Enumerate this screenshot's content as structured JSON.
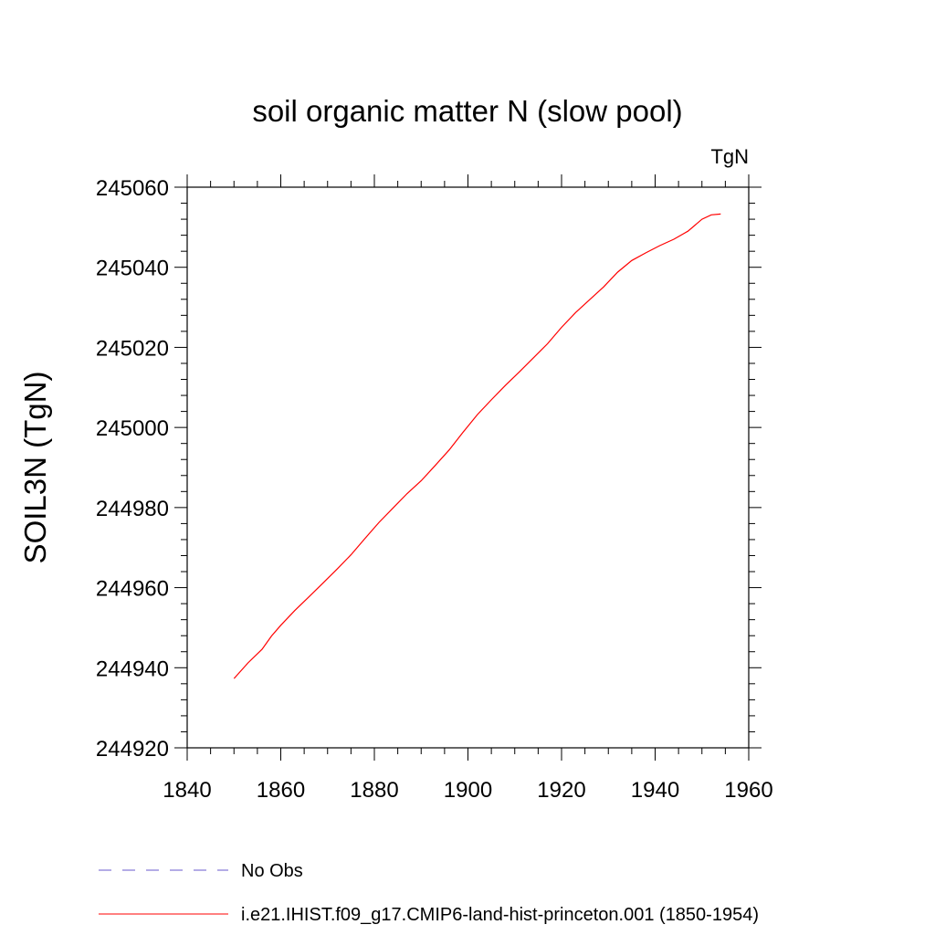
{
  "chart_data": {
    "type": "line",
    "title": "soil organic matter N (slow pool)",
    "units_label": "TgN",
    "xlabel": "",
    "ylabel": "SOIL3N  (TgN)",
    "xlim": [
      1840,
      1960
    ],
    "ylim": [
      244920,
      245060
    ],
    "x_ticks": [
      1840,
      1860,
      1880,
      1900,
      1920,
      1940,
      1960
    ],
    "y_ticks": [
      244920,
      244940,
      244960,
      244980,
      245000,
      245020,
      245040,
      245060
    ],
    "grid": false,
    "legend_position": "bottom",
    "series": [
      {
        "name": "No Obs",
        "color": "#6a5acd",
        "style": "dashed",
        "x": [],
        "y": []
      },
      {
        "name": "i.e21.IHIST.f09_g17.CMIP6-land-hist-princeton.001 (1850-1954)",
        "color": "#ff0000",
        "style": "solid",
        "x": [
          1850,
          1853,
          1856,
          1858,
          1860,
          1863,
          1866,
          1869,
          1872,
          1875,
          1878,
          1881,
          1884,
          1887,
          1890,
          1893,
          1896,
          1899,
          1902,
          1905,
          1908,
          1911,
          1914,
          1917,
          1920,
          1923,
          1926,
          1929,
          1932,
          1935,
          1938,
          1941,
          1944,
          1947,
          1950,
          1952,
          1954
        ],
        "y": [
          244937.3,
          244941.2,
          244944.6,
          244947.9,
          244950.6,
          244954.3,
          244957.7,
          244961.1,
          244964.6,
          244968.2,
          244972.3,
          244976.3,
          244979.9,
          244983.5,
          244986.7,
          244990.5,
          244994.4,
          244998.9,
          245003.2,
          245006.9,
          245010.5,
          245013.9,
          245017.4,
          245020.9,
          245025.0,
          245028.7,
          245031.9,
          245035.1,
          245038.8,
          245041.7,
          245043.6,
          245045.4,
          245047.0,
          245049.0,
          245052.0,
          245053.1,
          245053.3
        ]
      }
    ]
  }
}
